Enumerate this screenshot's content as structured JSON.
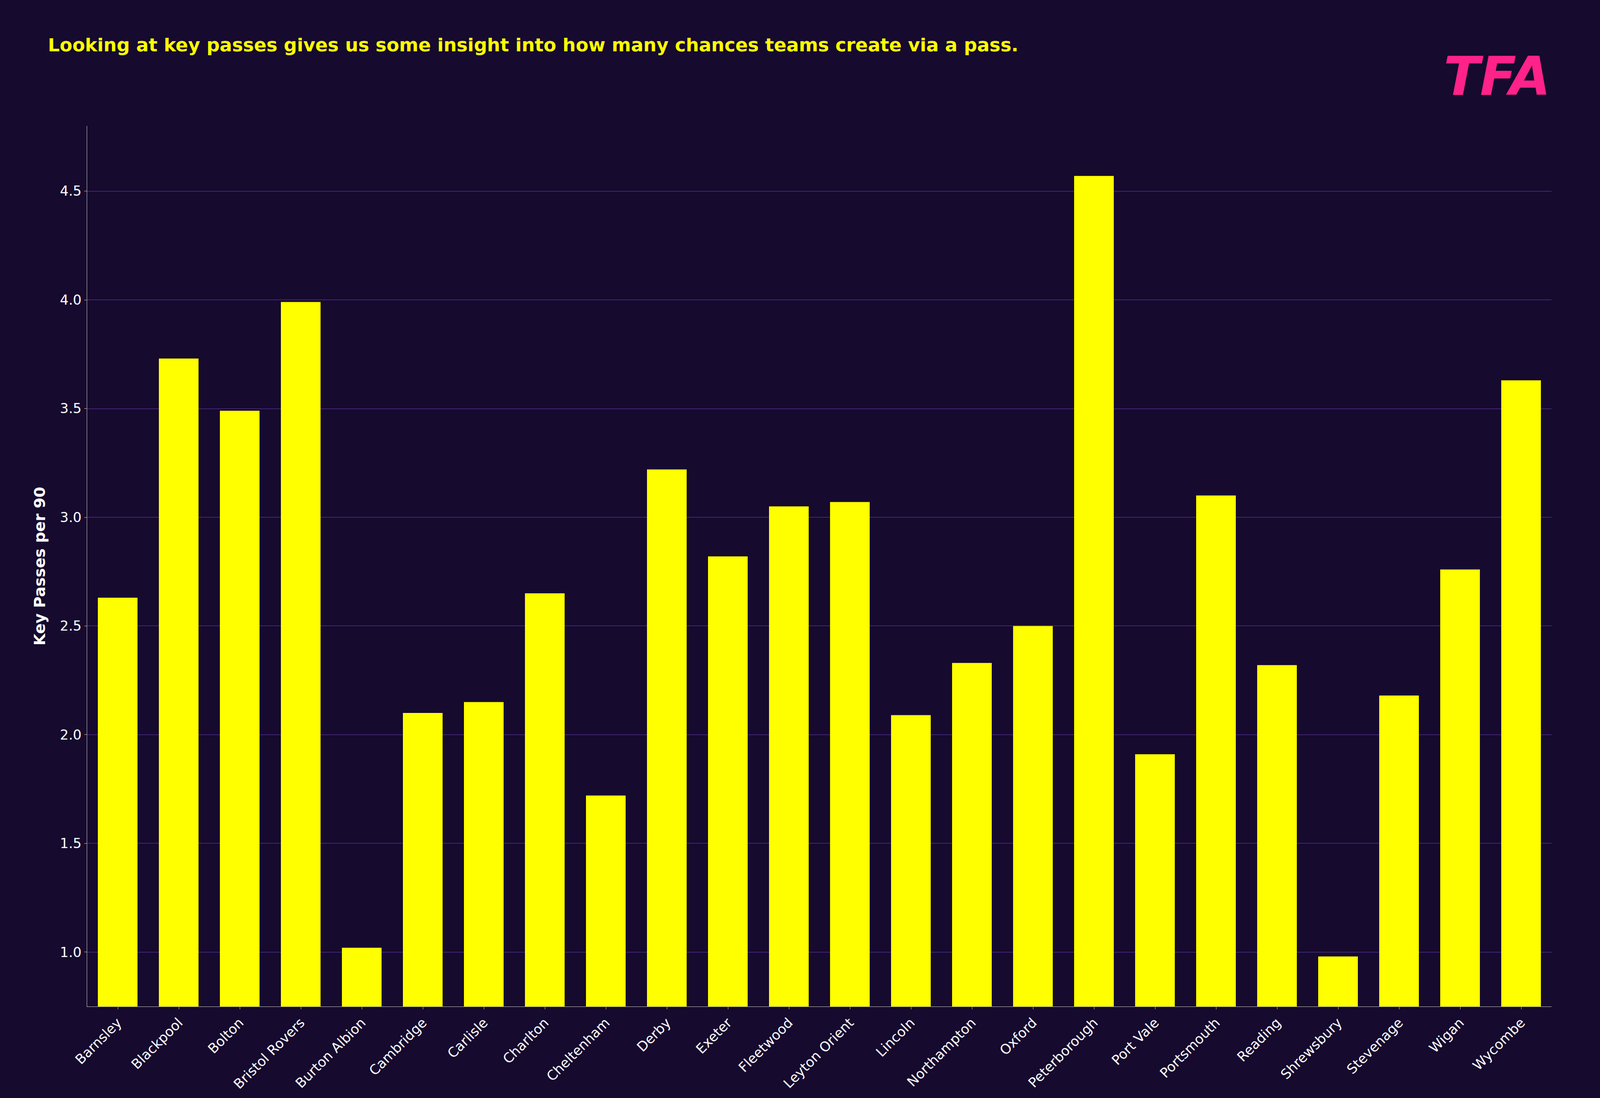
{
  "chart_data": {
    "type": "bar",
    "title": "Looking at key passes gives us some insight into how many chances teams create via a pass.",
    "annotations": [
      "TFA"
    ],
    "ylabel": "Key Passes per 90",
    "categories": [
      "Barnsley",
      "Blackpool",
      "Bolton",
      "Bristol Rovers",
      "Burton Albion",
      "Cambridge",
      "Carlisle",
      "Charlton",
      "Cheltenham",
      "Derby",
      "Exeter",
      "Fleetwood",
      "Leyton Orient",
      "Lincoln",
      "Northampton",
      "Oxford",
      "Peterborough",
      "Port Vale",
      "Portsmouth",
      "Reading",
      "Shrewsbury",
      "Stevenage",
      "Wigan",
      "Wycombe"
    ],
    "values": [
      2.63,
      3.73,
      3.49,
      3.99,
      1.02,
      2.1,
      2.15,
      2.65,
      1.72,
      3.22,
      2.82,
      3.05,
      3.07,
      2.09,
      2.33,
      2.5,
      4.57,
      1.91,
      3.1,
      2.32,
      0.98,
      2.18,
      2.76,
      3.63
    ],
    "color": "#FFFF00",
    "ylim": [
      0.75,
      4.8
    ],
    "yticks": [
      {
        "value": 1.0,
        "label": "1.0"
      },
      1.5,
      {
        "value": 2.0,
        "label": "2.0"
      },
      2.5,
      {
        "value": 3.0,
        "label": "3.0"
      },
      3.5,
      {
        "value": 4.0,
        "label": "4.0"
      },
      4.5
    ],
    "grid": true
  }
}
